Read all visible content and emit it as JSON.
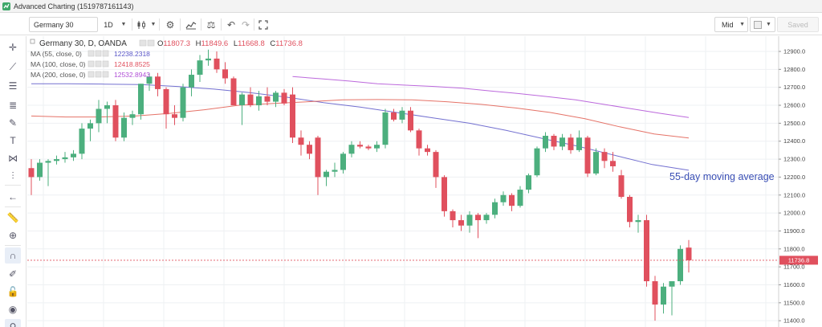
{
  "app": {
    "title": "Advanced Charting (1519787161143)"
  },
  "toolbar": {
    "symbol": "Germany 30",
    "interval": "1D",
    "price_type": "Mid",
    "save_label": "Saved"
  },
  "legend": {
    "instrument": "Germany 30, D, OANDA",
    "ohlc": {
      "o_label": "O",
      "o": "11807.3",
      "h_label": "H",
      "h": "11849.6",
      "l_label": "L",
      "l": "11668.8",
      "c_label": "C",
      "c": "11736.8"
    },
    "studies": [
      {
        "label": "MA (55, close, 0)",
        "value": "12238.2318",
        "color": "#5a57c8"
      },
      {
        "label": "MA (100, close, 0)",
        "value": "12418.8525",
        "color": "#e05a4e"
      },
      {
        "label": "MA (200, close, 0)",
        "value": "12532.8943",
        "color": "#b04fd6"
      }
    ]
  },
  "annotation": {
    "text": "55-day moving average",
    "color": "#3a4fb5"
  },
  "last_price": {
    "value": "11736.8",
    "display": "11736.8"
  },
  "colors": {
    "up": "#4caf7e",
    "down": "#e0505e",
    "grid": "#eef0f3"
  },
  "chart_data": {
    "type": "candlestick",
    "ylim": [
      11365,
      12985
    ],
    "yticks": [
      11400,
      11500,
      11600,
      11700,
      11800,
      11900,
      12000,
      12100,
      12200,
      12300,
      12400,
      12500,
      12600,
      12700,
      12800,
      12900
    ],
    "candles": [
      {
        "o": 12250,
        "h": 12300,
        "l": 12100,
        "c": 12200
      },
      {
        "o": 12200,
        "h": 12300,
        "l": 12180,
        "c": 12280
      },
      {
        "o": 12280,
        "h": 12300,
        "l": 12150,
        "c": 12290
      },
      {
        "o": 12290,
        "h": 12320,
        "l": 12270,
        "c": 12300
      },
      {
        "o": 12300,
        "h": 12340,
        "l": 12280,
        "c": 12310
      },
      {
        "o": 12310,
        "h": 12350,
        "l": 12290,
        "c": 12330
      },
      {
        "o": 12330,
        "h": 12500,
        "l": 12300,
        "c": 12470
      },
      {
        "o": 12470,
        "h": 12520,
        "l": 12400,
        "c": 12500
      },
      {
        "o": 12500,
        "h": 12630,
        "l": 12450,
        "c": 12580
      },
      {
        "o": 12580,
        "h": 12620,
        "l": 12500,
        "c": 12600
      },
      {
        "o": 12600,
        "h": 12630,
        "l": 12400,
        "c": 12420
      },
      {
        "o": 12420,
        "h": 12560,
        "l": 12400,
        "c": 12530
      },
      {
        "o": 12530,
        "h": 12570,
        "l": 12490,
        "c": 12550
      },
      {
        "o": 12550,
        "h": 12720,
        "l": 12520,
        "c": 12720
      },
      {
        "o": 12720,
        "h": 12780,
        "l": 12680,
        "c": 12760
      },
      {
        "o": 12760,
        "h": 12780,
        "l": 12650,
        "c": 12690
      },
      {
        "o": 12690,
        "h": 12700,
        "l": 12470,
        "c": 12550
      },
      {
        "o": 12550,
        "h": 12600,
        "l": 12490,
        "c": 12530
      },
      {
        "o": 12530,
        "h": 12720,
        "l": 12510,
        "c": 12700
      },
      {
        "o": 12700,
        "h": 12800,
        "l": 12650,
        "c": 12770
      },
      {
        "o": 12770,
        "h": 12880,
        "l": 12730,
        "c": 12850
      },
      {
        "o": 12850,
        "h": 12910,
        "l": 12820,
        "c": 12860
      },
      {
        "o": 12860,
        "h": 12900,
        "l": 12780,
        "c": 12800
      },
      {
        "o": 12800,
        "h": 12840,
        "l": 12720,
        "c": 12750
      },
      {
        "o": 12750,
        "h": 12760,
        "l": 12600,
        "c": 12600
      },
      {
        "o": 12600,
        "h": 12670,
        "l": 12490,
        "c": 12660
      },
      {
        "o": 12660,
        "h": 12700,
        "l": 12590,
        "c": 12600
      },
      {
        "o": 12600,
        "h": 12680,
        "l": 12570,
        "c": 12650
      },
      {
        "o": 12650,
        "h": 12700,
        "l": 12600,
        "c": 12620
      },
      {
        "o": 12620,
        "h": 12680,
        "l": 12590,
        "c": 12670
      },
      {
        "o": 12670,
        "h": 12690,
        "l": 12600,
        "c": 12610
      },
      {
        "o": 12660,
        "h": 12700,
        "l": 12390,
        "c": 12420
      },
      {
        "o": 12420,
        "h": 12460,
        "l": 12320,
        "c": 12380
      },
      {
        "o": 12380,
        "h": 12400,
        "l": 12300,
        "c": 12330
      },
      {
        "o": 12420,
        "h": 12430,
        "l": 12100,
        "c": 12200
      },
      {
        "o": 12200,
        "h": 12240,
        "l": 12150,
        "c": 12230
      },
      {
        "o": 12230,
        "h": 12280,
        "l": 12200,
        "c": 12240
      },
      {
        "o": 12240,
        "h": 12340,
        "l": 12220,
        "c": 12330
      },
      {
        "o": 12330,
        "h": 12400,
        "l": 12310,
        "c": 12380
      },
      {
        "o": 12380,
        "h": 12400,
        "l": 12360,
        "c": 12370
      },
      {
        "o": 12370,
        "h": 12380,
        "l": 12350,
        "c": 12360
      },
      {
        "o": 12360,
        "h": 12400,
        "l": 12340,
        "c": 12380
      },
      {
        "o": 12380,
        "h": 12580,
        "l": 12360,
        "c": 12560
      },
      {
        "o": 12560,
        "h": 12580,
        "l": 12510,
        "c": 12520
      },
      {
        "o": 12520,
        "h": 12590,
        "l": 12500,
        "c": 12570
      },
      {
        "o": 12570,
        "h": 12590,
        "l": 12450,
        "c": 12460
      },
      {
        "o": 12460,
        "h": 12470,
        "l": 12320,
        "c": 12360
      },
      {
        "o": 12360,
        "h": 12380,
        "l": 12320,
        "c": 12340
      },
      {
        "o": 12340,
        "h": 12350,
        "l": 12140,
        "c": 12200
      },
      {
        "o": 12200,
        "h": 12210,
        "l": 11980,
        "c": 12010
      },
      {
        "o": 12010,
        "h": 12020,
        "l": 11920,
        "c": 11960
      },
      {
        "o": 11960,
        "h": 11990,
        "l": 11900,
        "c": 11930
      },
      {
        "o": 11930,
        "h": 12010,
        "l": 11890,
        "c": 11990
      },
      {
        "o": 11990,
        "h": 12000,
        "l": 11860,
        "c": 11960
      },
      {
        "o": 11960,
        "h": 12000,
        "l": 11940,
        "c": 11990
      },
      {
        "o": 11990,
        "h": 12080,
        "l": 11970,
        "c": 12060
      },
      {
        "o": 12060,
        "h": 12120,
        "l": 12040,
        "c": 12100
      },
      {
        "o": 12100,
        "h": 12110,
        "l": 12010,
        "c": 12040
      },
      {
        "o": 12040,
        "h": 12150,
        "l": 12030,
        "c": 12130
      },
      {
        "o": 12130,
        "h": 12220,
        "l": 12110,
        "c": 12210
      },
      {
        "o": 12210,
        "h": 12370,
        "l": 12200,
        "c": 12360
      },
      {
        "o": 12360,
        "h": 12450,
        "l": 12340,
        "c": 12430
      },
      {
        "o": 12430,
        "h": 12440,
        "l": 12350,
        "c": 12370
      },
      {
        "o": 12370,
        "h": 12440,
        "l": 12350,
        "c": 12420
      },
      {
        "o": 12420,
        "h": 12440,
        "l": 12330,
        "c": 12350
      },
      {
        "o": 12350,
        "h": 12460,
        "l": 12340,
        "c": 12420
      },
      {
        "o": 12420,
        "h": 12430,
        "l": 12200,
        "c": 12220
      },
      {
        "o": 12220,
        "h": 12360,
        "l": 12210,
        "c": 12340
      },
      {
        "o": 12340,
        "h": 12360,
        "l": 12250,
        "c": 12290
      },
      {
        "o": 12290,
        "h": 12340,
        "l": 12230,
        "c": 12260
      },
      {
        "o": 12210,
        "h": 12240,
        "l": 12080,
        "c": 12090
      },
      {
        "o": 12090,
        "h": 12100,
        "l": 11920,
        "c": 11950
      },
      {
        "o": 11950,
        "h": 11990,
        "l": 11890,
        "c": 11960
      },
      {
        "o": 11960,
        "h": 11990,
        "l": 11590,
        "c": 11620
      },
      {
        "o": 11620,
        "h": 11650,
        "l": 11400,
        "c": 11490
      },
      {
        "o": 11490,
        "h": 11610,
        "l": 11440,
        "c": 11590
      },
      {
        "o": 11590,
        "h": 11620,
        "l": 11430,
        "c": 11620
      },
      {
        "o": 11620,
        "h": 11820,
        "l": 11600,
        "c": 11800
      },
      {
        "o": 11807.3,
        "h": 11849.6,
        "l": 11668.8,
        "c": 11736.8
      }
    ],
    "ma": [
      {
        "name": "MA (55, close, 0)",
        "start": 0,
        "points": [
          12720,
          12720,
          12718,
          12715,
          12705,
          12690,
          12670,
          12645,
          12615,
          12590,
          12560,
          12530,
          12500,
          12460,
          12415,
          12370,
          12320,
          12270,
          12238
        ]
      },
      {
        "name": "MA (100, close, 0)",
        "start": 0,
        "points": [
          12540,
          12535,
          12535,
          12540,
          12555,
          12575,
          12600,
          12610,
          12620,
          12630,
          12632,
          12630,
          12620,
          12605,
          12585,
          12560,
          12525,
          12480,
          12440,
          12418
        ]
      },
      {
        "name": "MA (200, close, 0)",
        "start": 31,
        "points": [
          12760,
          12748,
          12735,
          12720,
          12712,
          12705,
          12695,
          12680,
          12665,
          12648,
          12630,
          12605,
          12580,
          12555,
          12532
        ]
      }
    ]
  }
}
